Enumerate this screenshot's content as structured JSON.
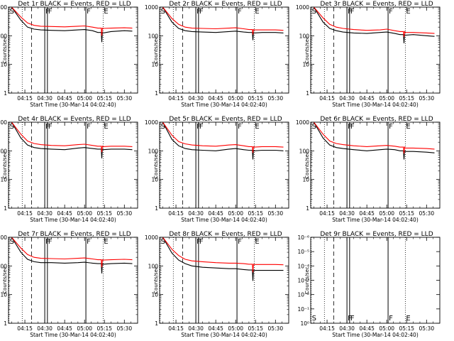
{
  "panels": [
    {
      "title": "Det 1r BLACK = Events, RED = LLD"
    },
    {
      "title": "Det 2r BLACK = Events, RED = LLD"
    },
    {
      "title": "Det 3r BLACK = Events, RED = LLD"
    },
    {
      "title": "Det 4r BLACK = Events, RED = LLD"
    },
    {
      "title": "Det 5r BLACK = Events, RED = LLD"
    },
    {
      "title": "Det 6r BLACK = Events, RED = LLD"
    },
    {
      "title": "Det 7r BLACK = Events, RED = LLD"
    },
    {
      "title": "Det 8r BLACK = Events, RED = LLD"
    },
    {
      "title": "Det 9r BLACK = Events, RED = LLD"
    }
  ],
  "xlabel": "Start Time (30-Mar-14 04:02:40)",
  "ylabel": "Counts/sec",
  "colors": {
    "events": "#000000",
    "lld": "#ff0000",
    "background": "#ffffff"
  },
  "chart_data": {
    "type": "line",
    "y_scale": "log",
    "ylim": [
      1,
      1000
    ],
    "y_ticks": [
      "1",
      "10",
      "100",
      "1000"
    ],
    "y_ticks_panel9": [
      "10⁰",
      "10⁻¹",
      "10⁻²",
      "10⁻³",
      "10⁻⁴",
      "10⁻⁵",
      "10⁻⁶"
    ],
    "x_tick_labels": [
      "04:15",
      "04:30",
      "04:45",
      "05:00",
      "05:15",
      "05:30"
    ],
    "x_tick_values_min": [
      15,
      30,
      45,
      60,
      75,
      90
    ],
    "xlim_min": [
      2.67,
      100
    ],
    "markers": [
      {
        "label": "S",
        "x_min": 3.0
      },
      {
        "label": "F",
        "x_min": 30.0
      },
      {
        "label": "F",
        "x_min": 32.0
      },
      {
        "label": "F",
        "x_min": 61.0
      },
      {
        "label": "E",
        "x_min": 74.0
      }
    ],
    "dotted_lines_min": [
      3.0,
      13.0,
      74.0
    ],
    "dashed_line_min": 20.0,
    "series": [
      {
        "name": "Events",
        "detectors": [
          [
            [
              5,
              1000
            ],
            [
              12,
              350
            ],
            [
              17,
              200
            ],
            [
              22,
              170
            ],
            [
              27,
              160
            ],
            [
              35,
              155
            ],
            [
              45,
              150
            ],
            [
              55,
              160
            ],
            [
              60,
              165
            ],
            [
              66,
              150
            ],
            [
              70,
              130
            ],
            [
              74,
              125
            ],
            [
              80,
              140
            ],
            [
              90,
              150
            ],
            [
              96,
              145
            ]
          ],
          [
            [
              5,
              1000
            ],
            [
              12,
              300
            ],
            [
              17,
              180
            ],
            [
              22,
              150
            ],
            [
              27,
              140
            ],
            [
              35,
              135
            ],
            [
              45,
              130
            ],
            [
              55,
              140
            ],
            [
              60,
              145
            ],
            [
              66,
              135
            ],
            [
              70,
              130
            ],
            [
              74,
              125
            ],
            [
              80,
              130
            ],
            [
              90,
              130
            ],
            [
              96,
              125
            ]
          ],
          [
            [
              5,
              1000
            ],
            [
              12,
              300
            ],
            [
              17,
              180
            ],
            [
              22,
              150
            ],
            [
              27,
              135
            ],
            [
              35,
              125
            ],
            [
              45,
              120
            ],
            [
              55,
              130
            ],
            [
              60,
              135
            ],
            [
              66,
              120
            ],
            [
              70,
              110
            ],
            [
              74,
              105
            ],
            [
              80,
              110
            ],
            [
              90,
              100
            ],
            [
              96,
              95
            ]
          ],
          [
            [
              5,
              1000
            ],
            [
              12,
              280
            ],
            [
              17,
              160
            ],
            [
              22,
              130
            ],
            [
              27,
              120
            ],
            [
              35,
              115
            ],
            [
              45,
              110
            ],
            [
              55,
              125
            ],
            [
              60,
              130
            ],
            [
              66,
              120
            ],
            [
              70,
              115
            ],
            [
              74,
              110
            ],
            [
              80,
              115
            ],
            [
              90,
              115
            ],
            [
              96,
              110
            ]
          ],
          [
            [
              5,
              1000
            ],
            [
              12,
              250
            ],
            [
              17,
              150
            ],
            [
              22,
              120
            ],
            [
              27,
              110
            ],
            [
              35,
              105
            ],
            [
              45,
              100
            ],
            [
              55,
              115
            ],
            [
              60,
              120
            ],
            [
              66,
              110
            ],
            [
              70,
              105
            ],
            [
              74,
              100
            ],
            [
              80,
              105
            ],
            [
              90,
              105
            ],
            [
              96,
              100
            ]
          ],
          [
            [
              5,
              1000
            ],
            [
              12,
              280
            ],
            [
              17,
              160
            ],
            [
              22,
              130
            ],
            [
              27,
              120
            ],
            [
              35,
              110
            ],
            [
              45,
              100
            ],
            [
              55,
              110
            ],
            [
              60,
              115
            ],
            [
              66,
              110
            ],
            [
              70,
              100
            ],
            [
              74,
              95
            ],
            [
              80,
              95
            ],
            [
              90,
              90
            ],
            [
              96,
              85
            ]
          ],
          [
            [
              5,
              1000
            ],
            [
              12,
              300
            ],
            [
              17,
              170
            ],
            [
              22,
              140
            ],
            [
              27,
              130
            ],
            [
              35,
              130
            ],
            [
              45,
              125
            ],
            [
              55,
              130
            ],
            [
              60,
              135
            ],
            [
              66,
              125
            ],
            [
              70,
              120
            ],
            [
              74,
              115
            ],
            [
              80,
              120
            ],
            [
              90,
              125
            ],
            [
              96,
              120
            ]
          ],
          [
            [
              5,
              1000
            ],
            [
              12,
              280
            ],
            [
              17,
              160
            ],
            [
              22,
              120
            ],
            [
              27,
              100
            ],
            [
              35,
              90
            ],
            [
              45,
              85
            ],
            [
              55,
              80
            ],
            [
              60,
              80
            ],
            [
              66,
              75
            ],
            [
              70,
              72
            ],
            [
              74,
              70
            ],
            [
              80,
              70
            ],
            [
              90,
              70
            ],
            [
              96,
              70
            ]
          ],
          []
        ]
      },
      {
        "name": "LLD",
        "detectors": [
          [
            [
              5,
              1000
            ],
            [
              12,
              450
            ],
            [
              17,
              280
            ],
            [
              22,
              230
            ],
            [
              27,
              215
            ],
            [
              35,
              210
            ],
            [
              45,
              205
            ],
            [
              55,
              215
            ],
            [
              60,
              220
            ],
            [
              66,
              200
            ],
            [
              70,
              185
            ],
            [
              74,
              180
            ],
            [
              80,
              185
            ],
            [
              90,
              190
            ],
            [
              96,
              185
            ]
          ],
          [
            [
              5,
              1000
            ],
            [
              12,
              400
            ],
            [
              17,
              250
            ],
            [
              22,
              200
            ],
            [
              27,
              185
            ],
            [
              35,
              180
            ],
            [
              45,
              175
            ],
            [
              55,
              185
            ],
            [
              60,
              190
            ],
            [
              66,
              175
            ],
            [
              70,
              165
            ],
            [
              74,
              160
            ],
            [
              80,
              160
            ],
            [
              90,
              160
            ],
            [
              96,
              155
            ]
          ],
          [
            [
              5,
              1000
            ],
            [
              12,
              420
            ],
            [
              17,
              250
            ],
            [
              22,
              200
            ],
            [
              27,
              180
            ],
            [
              35,
              165
            ],
            [
              45,
              155
            ],
            [
              55,
              160
            ],
            [
              60,
              170
            ],
            [
              66,
              150
            ],
            [
              70,
              140
            ],
            [
              74,
              130
            ],
            [
              80,
              130
            ],
            [
              90,
              125
            ],
            [
              96,
              120
            ]
          ],
          [
            [
              5,
              1000
            ],
            [
              12,
              380
            ],
            [
              17,
              220
            ],
            [
              22,
              180
            ],
            [
              27,
              165
            ],
            [
              35,
              155
            ],
            [
              45,
              150
            ],
            [
              55,
              165
            ],
            [
              60,
              170
            ],
            [
              66,
              155
            ],
            [
              70,
              145
            ],
            [
              74,
              140
            ],
            [
              80,
              145
            ],
            [
              90,
              145
            ],
            [
              96,
              140
            ]
          ],
          [
            [
              5,
              1000
            ],
            [
              12,
              350
            ],
            [
              17,
              210
            ],
            [
              22,
              175
            ],
            [
              27,
              160
            ],
            [
              35,
              150
            ],
            [
              45,
              145
            ],
            [
              55,
              160
            ],
            [
              60,
              165
            ],
            [
              66,
              150
            ],
            [
              70,
              140
            ],
            [
              74,
              135
            ],
            [
              80,
              140
            ],
            [
              90,
              140
            ],
            [
              96,
              135
            ]
          ],
          [
            [
              5,
              1000
            ],
            [
              12,
              380
            ],
            [
              17,
              220
            ],
            [
              22,
              180
            ],
            [
              27,
              165
            ],
            [
              35,
              150
            ],
            [
              45,
              140
            ],
            [
              55,
              150
            ],
            [
              60,
              155
            ],
            [
              66,
              145
            ],
            [
              70,
              135
            ],
            [
              74,
              125
            ],
            [
              80,
              125
            ],
            [
              90,
              120
            ],
            [
              96,
              115
            ]
          ],
          [
            [
              5,
              1000
            ],
            [
              12,
              420
            ],
            [
              17,
              250
            ],
            [
              22,
              200
            ],
            [
              27,
              185
            ],
            [
              35,
              180
            ],
            [
              45,
              175
            ],
            [
              55,
              185
            ],
            [
              60,
              190
            ],
            [
              66,
              175
            ],
            [
              70,
              165
            ],
            [
              74,
              160
            ],
            [
              80,
              165
            ],
            [
              90,
              170
            ],
            [
              96,
              165
            ]
          ],
          [
            [
              5,
              1000
            ],
            [
              12,
              380
            ],
            [
              17,
              230
            ],
            [
              22,
              170
            ],
            [
              27,
              150
            ],
            [
              35,
              140
            ],
            [
              45,
              130
            ],
            [
              55,
              125
            ],
            [
              60,
              125
            ],
            [
              66,
              120
            ],
            [
              70,
              115
            ],
            [
              74,
              112
            ],
            [
              80,
              112
            ],
            [
              90,
              112
            ],
            [
              96,
              110
            ]
          ],
          []
        ]
      }
    ],
    "dips": [
      {
        "detector": 1,
        "x_min": 73,
        "events": 60,
        "lld": 100
      },
      {
        "detector": 2,
        "x_min": 73,
        "events": 70,
        "lld": 110
      },
      {
        "detector": 3,
        "x_min": 73,
        "events": 55,
        "lld": 90
      },
      {
        "detector": 4,
        "x_min": 73,
        "events": 55,
        "lld": 90
      },
      {
        "detector": 5,
        "x_min": 73,
        "events": 50,
        "lld": 85
      },
      {
        "detector": 6,
        "x_min": 73,
        "events": 50,
        "lld": 80
      },
      {
        "detector": 7,
        "x_min": 73,
        "events": 55,
        "lld": 90
      },
      {
        "detector": 8,
        "x_min": 73,
        "events": 30,
        "lld": 60
      }
    ]
  }
}
